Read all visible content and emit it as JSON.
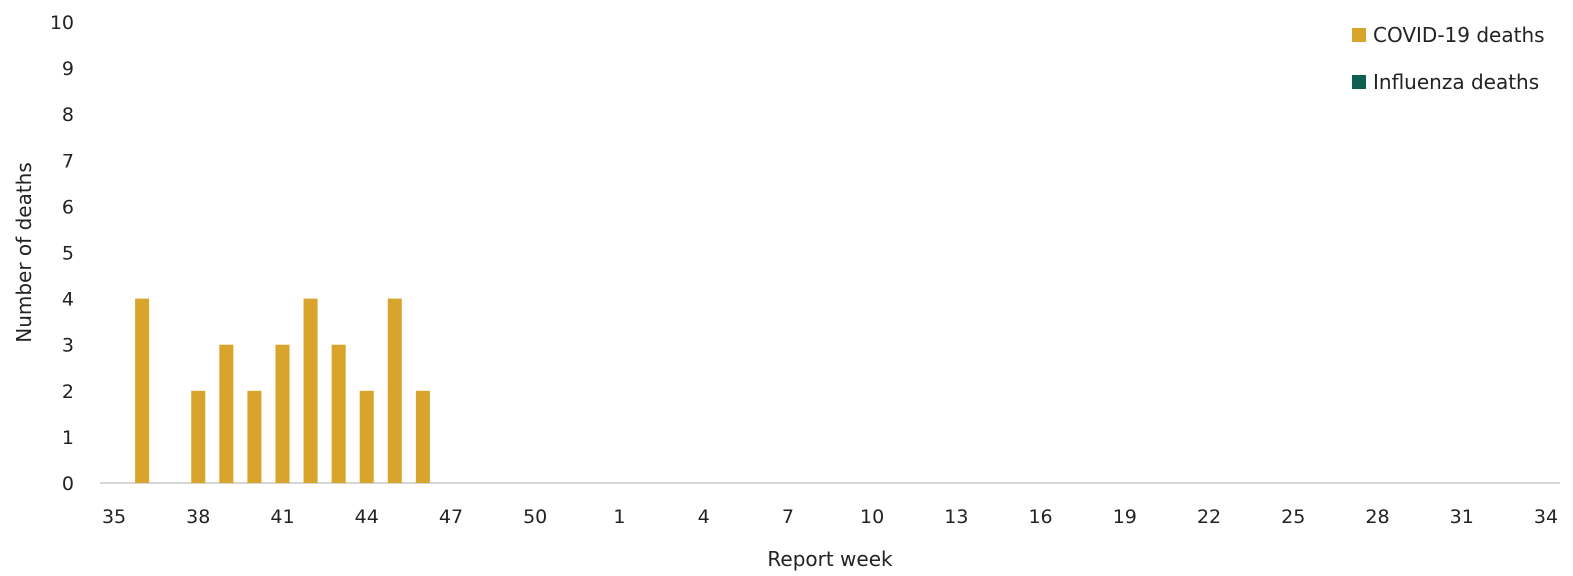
{
  "chart_data": {
    "type": "bar",
    "xlabel": "Report week",
    "ylabel": "Number of deaths",
    "ylim": [
      0,
      10
    ],
    "yticks": [
      0,
      1,
      2,
      3,
      4,
      5,
      6,
      7,
      8,
      9,
      10
    ],
    "categories": [
      35,
      36,
      37,
      38,
      39,
      40,
      41,
      42,
      43,
      44,
      45,
      46,
      47,
      48,
      49,
      50,
      51,
      52,
      1,
      2,
      3,
      4,
      5,
      6,
      7,
      8,
      9,
      10,
      11,
      12,
      13,
      14,
      15,
      16,
      17,
      18,
      19,
      20,
      21,
      22,
      23,
      24,
      25,
      26,
      27,
      28,
      29,
      30,
      31,
      32,
      33,
      34
    ],
    "xtick_labels": [
      "35",
      "38",
      "41",
      "44",
      "47",
      "50",
      "1",
      "4",
      "7",
      "10",
      "13",
      "16",
      "19",
      "22",
      "25",
      "28",
      "31",
      "34"
    ],
    "legend_position": "top-right",
    "series": [
      {
        "name": "COVID-19 deaths",
        "color": "#D9A42B",
        "values": [
          null,
          4,
          null,
          2,
          3,
          2,
          3,
          4,
          3,
          2,
          4,
          2,
          null,
          null,
          null,
          null,
          null,
          null,
          null,
          null,
          null,
          null,
          null,
          null,
          null,
          null,
          null,
          null,
          null,
          null,
          null,
          null,
          null,
          null,
          null,
          null,
          null,
          null,
          null,
          null,
          null,
          null,
          null,
          null,
          null,
          null,
          null,
          null,
          null,
          null,
          null,
          null
        ]
      },
      {
        "name": "Influenza deaths",
        "color": "#0F5F50",
        "values": [
          null,
          null,
          null,
          null,
          null,
          null,
          null,
          null,
          null,
          null,
          null,
          null,
          null,
          null,
          null,
          null,
          null,
          null,
          null,
          null,
          null,
          null,
          null,
          null,
          null,
          null,
          null,
          null,
          null,
          null,
          null,
          null,
          null,
          null,
          null,
          null,
          null,
          null,
          null,
          null,
          null,
          null,
          null,
          null,
          null,
          null,
          null,
          null,
          null,
          null,
          null,
          null
        ]
      }
    ]
  }
}
